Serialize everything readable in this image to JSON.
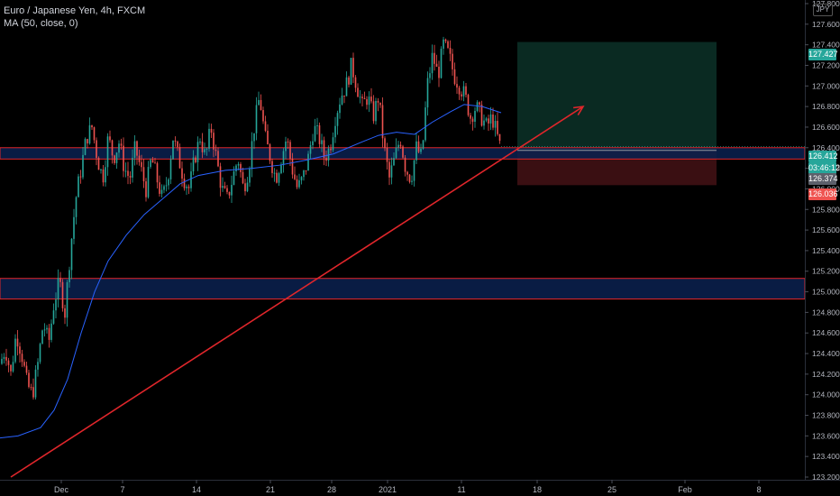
{
  "header": {
    "title": "Euro / Japanese Yen, 4h, FXCM",
    "indicator": "MA (50, close, 0)",
    "currency": "JPY"
  },
  "price_labels": {
    "target": "127.427",
    "current": "126.412",
    "countdown": "03:46:12",
    "entry": "126.374",
    "stop": "126.036"
  },
  "colors": {
    "up": "#26a69a",
    "down": "#ef5350",
    "ma": "#2962ff",
    "zone_fill": "#0b2150",
    "zone_border": "#e0262b",
    "trendline": "#e0262b",
    "target_zone": "#0a2a22",
    "stop_zone": "#3a0f12"
  },
  "chart_data": {
    "type": "candlestick",
    "title": "Euro / Japanese Yen, 4h, FXCM",
    "ylim": [
      123.2,
      127.8
    ],
    "y_ticks": [
      "127.800",
      "127.600",
      "127.400",
      "127.200",
      "127.000",
      "126.800",
      "126.600",
      "126.400",
      "126.200",
      "126.000",
      "125.800",
      "125.600",
      "125.400",
      "125.200",
      "125.000",
      "124.800",
      "124.600",
      "124.400",
      "124.200",
      "124.000",
      "123.800",
      "123.600",
      "123.400",
      "123.200"
    ],
    "x_ticks": [
      "Dec",
      "7",
      "14",
      "21",
      "28",
      "2021",
      "11",
      "18",
      "25",
      "Feb",
      "8"
    ],
    "close_path": [
      [
        0,
        124.3
      ],
      [
        6,
        124.45
      ],
      [
        12,
        124.2
      ],
      [
        18,
        124.6
      ],
      [
        24,
        124.4
      ],
      [
        30,
        124.1
      ],
      [
        36,
        124.0
      ],
      [
        42,
        124.3
      ],
      [
        48,
        124.7
      ],
      [
        54,
        124.5
      ],
      [
        60,
        124.9
      ],
      [
        66,
        125.1
      ],
      [
        72,
        124.8
      ],
      [
        78,
        125.4
      ],
      [
        84,
        125.9
      ],
      [
        90,
        126.2
      ],
      [
        96,
        126.5
      ],
      [
        102,
        126.6
      ],
      [
        108,
        126.3
      ],
      [
        114,
        126.1
      ],
      [
        120,
        126.5
      ],
      [
        126,
        126.3
      ],
      [
        132,
        126.45
      ],
      [
        138,
        126.2
      ],
      [
        144,
        126.1
      ],
      [
        150,
        126.4
      ],
      [
        156,
        126.2
      ],
      [
        162,
        126.0
      ],
      [
        168,
        126.3
      ],
      [
        174,
        126.1
      ],
      [
        180,
        125.9
      ],
      [
        186,
        126.1
      ],
      [
        192,
        126.5
      ],
      [
        198,
        126.3
      ],
      [
        204,
        126.1
      ],
      [
        210,
        126.0
      ],
      [
        216,
        126.3
      ],
      [
        222,
        126.5
      ],
      [
        228,
        126.3
      ],
      [
        234,
        126.6
      ],
      [
        240,
        126.3
      ],
      [
        246,
        126.0
      ],
      [
        252,
        125.9
      ],
      [
        258,
        126.1
      ],
      [
        264,
        126.3
      ],
      [
        270,
        126.0
      ],
      [
        276,
        126.2
      ],
      [
        282,
        126.6
      ],
      [
        288,
        126.9
      ],
      [
        294,
        126.5
      ],
      [
        300,
        126.3
      ],
      [
        306,
        126.1
      ],
      [
        312,
        126.3
      ],
      [
        318,
        126.5
      ],
      [
        324,
        126.2
      ],
      [
        330,
        126.0
      ],
      [
        336,
        126.1
      ],
      [
        342,
        126.3
      ],
      [
        348,
        126.6
      ],
      [
        354,
        126.5
      ],
      [
        360,
        126.3
      ],
      [
        366,
        126.4
      ],
      [
        372,
        126.7
      ],
      [
        378,
        126.9
      ],
      [
        384,
        127.0
      ],
      [
        390,
        127.2
      ],
      [
        396,
        127.0
      ],
      [
        402,
        126.8
      ],
      [
        408,
        126.9
      ],
      [
        414,
        126.7
      ],
      [
        420,
        126.9
      ],
      [
        426,
        126.4
      ],
      [
        432,
        126.1
      ],
      [
        438,
        126.3
      ],
      [
        444,
        126.5
      ],
      [
        450,
        126.2
      ],
      [
        456,
        126.1
      ],
      [
        462,
        126.4
      ],
      [
        468,
        126.3
      ],
      [
        474,
        127.0
      ],
      [
        480,
        127.3
      ],
      [
        486,
        127.1
      ],
      [
        492,
        127.4
      ],
      [
        498,
        127.3
      ],
      [
        504,
        127.1
      ],
      [
        510,
        127.0
      ],
      [
        516,
        126.9
      ],
      [
        522,
        126.7
      ],
      [
        528,
        126.8
      ],
      [
        534,
        126.7
      ],
      [
        540,
        126.6
      ],
      [
        546,
        126.7
      ],
      [
        552,
        126.5
      ],
      [
        556,
        126.374
      ]
    ],
    "ma_path": [
      [
        0,
        123.58
      ],
      [
        20,
        123.6
      ],
      [
        45,
        123.68
      ],
      [
        60,
        123.85
      ],
      [
        75,
        124.15
      ],
      [
        90,
        124.6
      ],
      [
        105,
        125.0
      ],
      [
        120,
        125.3
      ],
      [
        140,
        125.55
      ],
      [
        160,
        125.75
      ],
      [
        180,
        125.9
      ],
      [
        200,
        126.05
      ],
      [
        220,
        126.13
      ],
      [
        250,
        126.18
      ],
      [
        280,
        126.2
      ],
      [
        310,
        126.23
      ],
      [
        340,
        126.28
      ],
      [
        370,
        126.34
      ],
      [
        400,
        126.45
      ],
      [
        420,
        126.52
      ],
      [
        440,
        126.55
      ],
      [
        460,
        126.53
      ],
      [
        480,
        126.65
      ],
      [
        500,
        126.75
      ],
      [
        515,
        126.82
      ],
      [
        535,
        126.8
      ],
      [
        556,
        126.74
      ]
    ],
    "zones": [
      {
        "top": 126.4,
        "bottom": 126.29
      },
      {
        "top": 125.13,
        "bottom": 124.93
      }
    ],
    "trendline": {
      "x": [
        12,
        647
      ],
      "y": [
        123.2,
        126.8
      ]
    },
    "position": {
      "x_start": 574,
      "x_end": 795,
      "target": 127.427,
      "entry": 126.374,
      "stop": 126.036
    }
  }
}
